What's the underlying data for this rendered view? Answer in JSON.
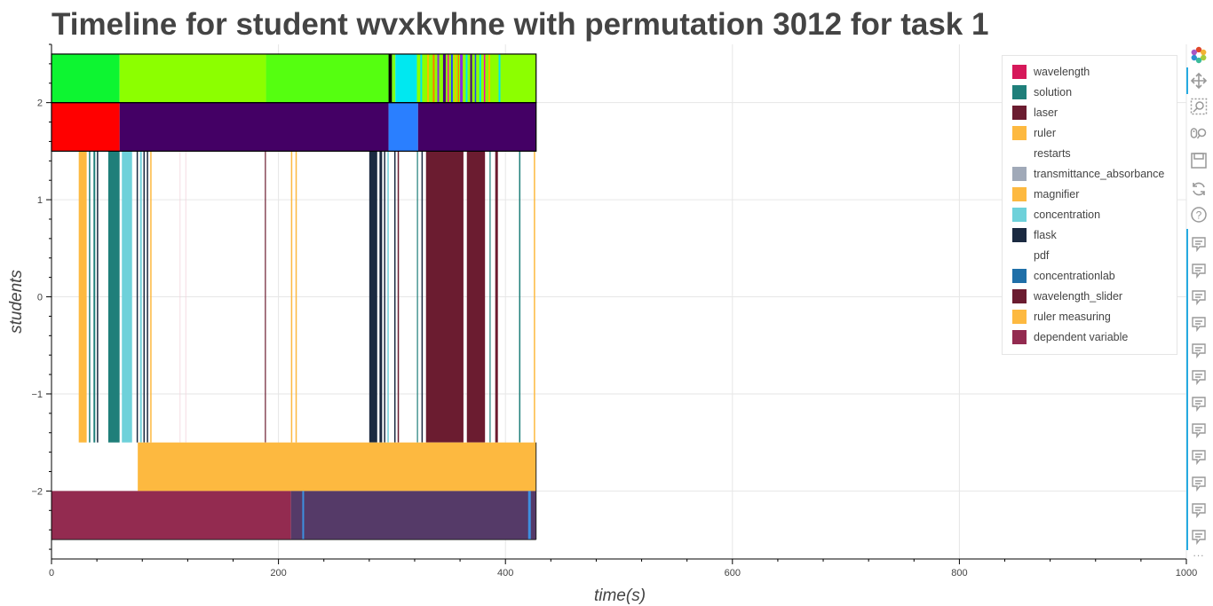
{
  "chart_data": {
    "type": "timeline",
    "title": "Timeline for student wvxkvhne with permutation 3012 for task 1",
    "xlabel": "time(s)",
    "ylabel": "students",
    "xlim": [
      0,
      1000
    ],
    "ylim": [
      -2.7,
      2.6
    ],
    "x_ticks": [
      "0",
      "200",
      "400",
      "600",
      "800",
      "1000"
    ],
    "y_ticks": [
      "2",
      "1",
      "0",
      "−1",
      "−2"
    ],
    "x_tick_values": [
      0,
      200,
      400,
      600,
      800,
      1000
    ],
    "y_tick_values": [
      2,
      1,
      0,
      -1,
      -2
    ],
    "grid": true,
    "legend_position": "top-right",
    "legend": [
      {
        "label": "wavelength",
        "color": "#d6185a"
      },
      {
        "label": "solution",
        "color": "#1f7f7a"
      },
      {
        "label": "laser",
        "color": "#6b1c30"
      },
      {
        "label": "ruler",
        "color": "#fdb940"
      },
      {
        "label": "restarts",
        "color": "#ffffff"
      },
      {
        "label": "transmittance_absorbance",
        "color": "#a0a9b8"
      },
      {
        "label": "magnifier",
        "color": "#fdb940"
      },
      {
        "label": "concentration",
        "color": "#6ed1da"
      },
      {
        "label": "flask",
        "color": "#1b2a41"
      },
      {
        "label": "pdf",
        "color": "#ffffff"
      },
      {
        "label": "concentrationlab",
        "color": "#1f6fa8"
      },
      {
        "label": "wavelength_slider",
        "color": "#6b1c30"
      },
      {
        "label": "ruler measuring",
        "color": "#fdb940"
      },
      {
        "label": "dependent variable",
        "color": "#932b50"
      }
    ],
    "rows": [
      {
        "y_range": [
          2,
          2.5
        ],
        "segments": [
          {
            "x0": 0,
            "x1": 60,
            "color": "#0df531"
          },
          {
            "x0": 60,
            "x1": 189,
            "color": "#8cff00"
          },
          {
            "x0": 189,
            "x1": 297,
            "color": "#55ff10"
          },
          {
            "x0": 297,
            "x1": 300,
            "color": "#000000"
          },
          {
            "x0": 300,
            "x1": 303,
            "color": "#7cff1a"
          },
          {
            "x0": 303,
            "x1": 322,
            "color": "#00e8f0"
          },
          {
            "x0": 322,
            "x1": 427,
            "color": "#8cff00"
          }
        ],
        "stripes": [
          {
            "x": 325,
            "w": 2,
            "color": "#00e8f0"
          },
          {
            "x": 331,
            "w": 2,
            "color": "#f5c000"
          },
          {
            "x": 336,
            "w": 2,
            "color": "#ff7a00"
          },
          {
            "x": 340,
            "w": 2,
            "color": "#8a2be2"
          },
          {
            "x": 345,
            "w": 3,
            "color": "#4b0082"
          },
          {
            "x": 349,
            "w": 1.5,
            "color": "#ff00aa"
          },
          {
            "x": 352,
            "w": 2,
            "color": "#2244ff"
          },
          {
            "x": 355,
            "w": 2,
            "color": "#f5c000"
          },
          {
            "x": 358,
            "w": 1.5,
            "color": "#ff7a00"
          },
          {
            "x": 360,
            "w": 3,
            "color": "#8a2be2"
          },
          {
            "x": 365,
            "w": 2,
            "color": "#00e8f0"
          },
          {
            "x": 369,
            "w": 2,
            "color": "#4b0082"
          },
          {
            "x": 373,
            "w": 1.5,
            "color": "#2244ff"
          },
          {
            "x": 377,
            "w": 2,
            "color": "#00e8f0"
          },
          {
            "x": 381,
            "w": 1.5,
            "color": "#ff00aa"
          },
          {
            "x": 385,
            "w": 2,
            "color": "#f5c000"
          },
          {
            "x": 394,
            "w": 2,
            "color": "#00e8f0"
          }
        ]
      },
      {
        "y_range": [
          1.5,
          2
        ],
        "segments": [
          {
            "x0": 0,
            "x1": 60,
            "color": "#ff0000"
          },
          {
            "x0": 60,
            "x1": 297,
            "color": "#440065"
          },
          {
            "x0": 297,
            "x1": 323,
            "color": "#2a7fff"
          },
          {
            "x0": 323,
            "x1": 427,
            "color": "#440065"
          }
        ],
        "stripes": []
      },
      {
        "y_range": [
          -1.5,
          1.5
        ],
        "segments": [
          {
            "x0": 24,
            "x1": 31,
            "color": "#fdb940"
          },
          {
            "x0": 50,
            "x1": 60,
            "color": "#1f7f7a"
          },
          {
            "x0": 62,
            "x1": 71,
            "color": "#6ed1da"
          },
          {
            "x0": 280,
            "x1": 287,
            "color": "#1b2a41"
          },
          {
            "x0": 330,
            "x1": 363,
            "color": "#6b1c30"
          },
          {
            "x0": 366,
            "x1": 382,
            "color": "#6b1c30"
          }
        ],
        "stripes": [
          {
            "x": 33,
            "w": 1.5,
            "color": "#1f7f7a"
          },
          {
            "x": 37,
            "w": 2,
            "color": "#1f7f7a"
          },
          {
            "x": 40,
            "w": 1.5,
            "color": "#1b2a41"
          },
          {
            "x": 75,
            "w": 1.5,
            "color": "#1b2a41"
          },
          {
            "x": 78,
            "w": 2,
            "color": "#6ed1da"
          },
          {
            "x": 81,
            "w": 1.5,
            "color": "#1b2a41"
          },
          {
            "x": 84,
            "w": 1.5,
            "color": "#1b2a41"
          },
          {
            "x": 87,
            "w": 1.5,
            "color": "#fdb940"
          },
          {
            "x": 113,
            "w": 0.8,
            "color": "#f3d3dd"
          },
          {
            "x": 118,
            "w": 0.8,
            "color": "#f3d3dd"
          },
          {
            "x": 188,
            "w": 1.2,
            "color": "#6b1c30"
          },
          {
            "x": 211,
            "w": 1.5,
            "color": "#fdb940"
          },
          {
            "x": 215,
            "w": 1.5,
            "color": "#fdb940"
          },
          {
            "x": 289,
            "w": 3,
            "color": "#1b2a41"
          },
          {
            "x": 293,
            "w": 1.5,
            "color": "#1b2a41"
          },
          {
            "x": 296,
            "w": 1.5,
            "color": "#6ed1da"
          },
          {
            "x": 302,
            "w": 1.5,
            "color": "#1b2a41"
          },
          {
            "x": 305,
            "w": 1.5,
            "color": "#6b1c30"
          },
          {
            "x": 322,
            "w": 1.2,
            "color": "#1f7f7a"
          },
          {
            "x": 326,
            "w": 1.5,
            "color": "#1b2a41"
          },
          {
            "x": 386,
            "w": 1.2,
            "color": "#1f7f7a"
          },
          {
            "x": 391,
            "w": 3,
            "color": "#6b1c30"
          },
          {
            "x": 412,
            "w": 1.5,
            "color": "#1f7f7a"
          },
          {
            "x": 425,
            "w": 1.5,
            "color": "#fdb940"
          }
        ]
      },
      {
        "y_range": [
          -2,
          -1.5
        ],
        "segments": [
          {
            "x0": 76,
            "x1": 427,
            "color": "#fdb940"
          }
        ],
        "stripes": []
      },
      {
        "y_range": [
          -2.5,
          -2
        ],
        "segments": [
          {
            "x0": 0,
            "x1": 211,
            "color": "#932b50"
          },
          {
            "x0": 211,
            "x1": 427,
            "color": "#553a68"
          }
        ],
        "stripes": [
          {
            "x": 221,
            "w": 2,
            "color": "#3d8fe0"
          },
          {
            "x": 420,
            "w": 3,
            "color": "#3d8fe0"
          }
        ]
      }
    ]
  },
  "toolbar": {
    "tools": [
      "bokeh-logo-icon",
      "pan-icon",
      "box-zoom-icon",
      "wheel-zoom-icon",
      "save-icon",
      "reset-icon",
      "help-icon"
    ],
    "hover_tool_count": 12,
    "more_label": "..."
  }
}
